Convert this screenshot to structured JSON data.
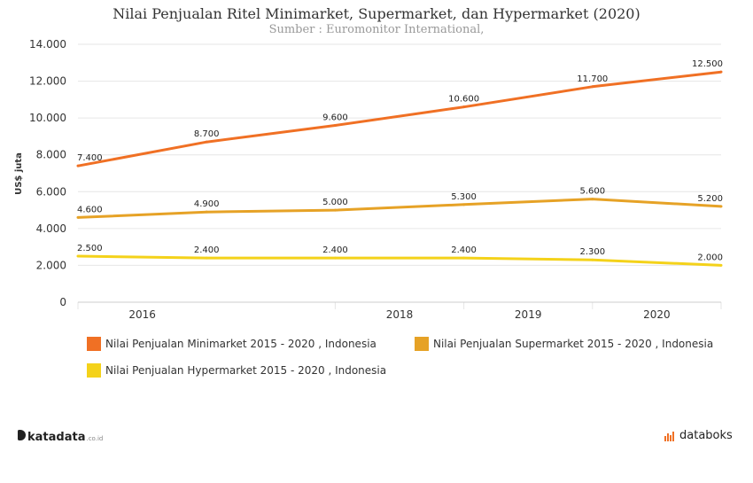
{
  "title": "Nilai Penjualan Ritel Minimarket, Supermarket, dan Hypermarket (2020)",
  "subtitle": "Sumber : Euromonitor International,",
  "chart_data": {
    "type": "line",
    "ylabel": "US$ juta",
    "xlabel": "",
    "x": [
      2015,
      2016,
      2017,
      2018,
      2019,
      2020
    ],
    "x_tick_labels": [
      {
        "x": 2015.5,
        "label": "2016"
      },
      {
        "x": 2017.5,
        "label": "2018"
      },
      {
        "x": 2018.5,
        "label": "2019"
      },
      {
        "x": 2019.5,
        "label": "2020"
      }
    ],
    "x_gridlines": [
      2015,
      2017,
      2018,
      2019,
      2020
    ],
    "ylim": [
      0,
      14000
    ],
    "y_ticks": [
      0,
      2000,
      4000,
      6000,
      8000,
      10000,
      12000,
      14000
    ],
    "y_tick_labels": [
      "0",
      "2.000",
      "4.000",
      "6.000",
      "8.000",
      "10.000",
      "12.000",
      "14.000"
    ],
    "grid": true,
    "legend_position": "bottom",
    "series": [
      {
        "name": "Nilai Penjualan Minimarket 2015 - 2020 , Indonesia",
        "color": "#f07024",
        "values": [
          7400,
          8700,
          9600,
          10600,
          11700,
          12500
        ],
        "labels": [
          "7.400",
          "8.700",
          "9.600",
          "10.600",
          "11.700",
          "12.500"
        ]
      },
      {
        "name": "Nilai Penjualan Supermarket 2015 - 2020 , Indonesia",
        "color": "#e6a226",
        "values": [
          4600,
          4900,
          5000,
          5300,
          5600,
          5200
        ],
        "labels": [
          "4.600",
          "4.900",
          "5.000",
          "5.300",
          "5.600",
          "5.200"
        ]
      },
      {
        "name": "Nilai Penjualan Hypermarket 2015 - 2020 , Indonesia",
        "color": "#f4d21a",
        "values": [
          2500,
          2400,
          2400,
          2400,
          2300,
          2000
        ],
        "labels": [
          "2.500",
          "2.400",
          "2.400",
          "2.400",
          "2.300",
          "2.000"
        ]
      }
    ]
  },
  "legend": {
    "minimarket": "Nilai Penjualan Minimarket 2015 - 2020   , Indonesia",
    "supermarket": "Nilai Penjualan Supermarket 2015 - 2020   , Indonesia",
    "hypermarket": "Nilai Penjualan Hypermarket 2015 - 2020   , Indonesia"
  },
  "brand": {
    "left": "katadata",
    "left_domain": ".co.id",
    "right": "databoks"
  }
}
